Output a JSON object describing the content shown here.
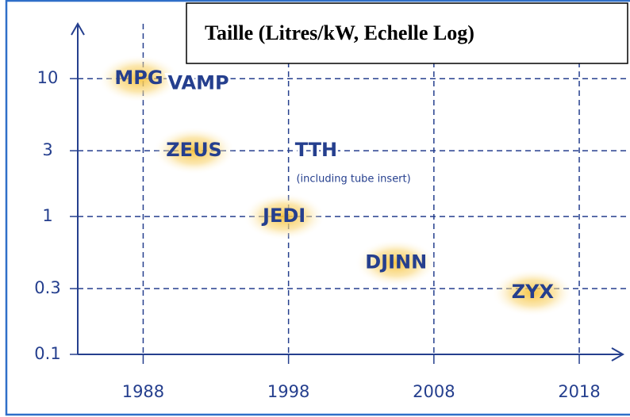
{
  "chart_data": {
    "type": "scatter",
    "title": "Taille (Litres/kW, Echelle Log)",
    "points": [
      {
        "label": "MPG",
        "x": 1987.7,
        "y": 10,
        "glow": true
      },
      {
        "label": "VAMP",
        "x": 1991.8,
        "y": 9.2,
        "glow": false
      },
      {
        "label": "ZEUS",
        "x": 1991.5,
        "y": 3,
        "glow": true
      },
      {
        "label": "TTH",
        "sublabel": "(including tube insert)",
        "x": 1999.9,
        "y": 3,
        "glow": false
      },
      {
        "label": "JEDI",
        "x": 1997.7,
        "y": 1,
        "glow": true
      },
      {
        "label": "DJINN",
        "x": 2005.4,
        "y": 0.46,
        "glow": true
      },
      {
        "label": "ZYX",
        "x": 2014.8,
        "y": 0.28,
        "glow": true
      }
    ],
    "color": "#253f8e",
    "glow_color": "#f7c23a",
    "yscale": "log",
    "xlim": [
      1983.5,
      2021
    ],
    "xticks": [
      1988,
      1998,
      2008,
      2018
    ],
    "ylim": [
      0.1,
      25
    ],
    "yticks": [
      10,
      3,
      1,
      0.3,
      0.1
    ],
    "grid": true
  }
}
